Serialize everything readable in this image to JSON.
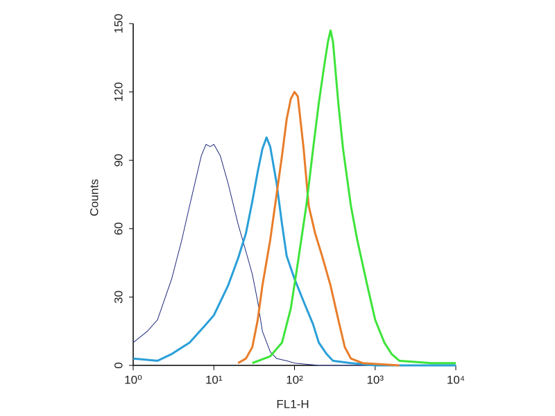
{
  "chart_data": {
    "type": "line",
    "x_label": "FL1-H",
    "y_label": "Counts",
    "xscale": "log",
    "xlim": [
      1,
      10000
    ],
    "ylim": [
      0,
      150
    ],
    "xticks": [
      {
        "value": 1,
        "label": "10⁰"
      },
      {
        "value": 10,
        "label": "10¹"
      },
      {
        "value": 100,
        "label": "10²"
      },
      {
        "value": 1000,
        "label": "10³"
      },
      {
        "value": 10000,
        "label": "10⁴"
      }
    ],
    "yticks": [
      0,
      30,
      60,
      90,
      120,
      150
    ],
    "series": [
      {
        "color": "#1f2a7a",
        "width": 1,
        "x": [
          1,
          1.5,
          2,
          3,
          4,
          5,
          6,
          7,
          8,
          9,
          10,
          12,
          15,
          20,
          25,
          30,
          35,
          40,
          50,
          60,
          80,
          100,
          200,
          1000
        ],
        "values": [
          10,
          15,
          20,
          38,
          55,
          70,
          82,
          92,
          97,
          96,
          97,
          92,
          80,
          62,
          50,
          40,
          28,
          15,
          6,
          3,
          2,
          1,
          0,
          0
        ]
      },
      {
        "color": "#2a9fd8",
        "width": 3,
        "x": [
          1,
          2,
          3,
          5,
          8,
          10,
          15,
          20,
          25,
          30,
          35,
          40,
          45,
          50,
          60,
          70,
          80,
          100,
          130,
          170,
          200,
          250,
          300,
          500,
          1000,
          10000
        ],
        "values": [
          3,
          2,
          5,
          10,
          18,
          22,
          35,
          47,
          58,
          72,
          85,
          95,
          100,
          96,
          80,
          62,
          48,
          38,
          28,
          18,
          10,
          5,
          2,
          1,
          0,
          0
        ]
      },
      {
        "color": "#e87d2a",
        "width": 3,
        "x": [
          20,
          25,
          30,
          35,
          40,
          50,
          60,
          70,
          80,
          90,
          100,
          110,
          130,
          150,
          180,
          220,
          280,
          350,
          420,
          500,
          700,
          2000
        ],
        "values": [
          1,
          3,
          8,
          20,
          35,
          55,
          75,
          92,
          108,
          117,
          120,
          118,
          95,
          70,
          58,
          48,
          35,
          20,
          8,
          3,
          1,
          0
        ]
      },
      {
        "color": "#3de43a",
        "width": 3,
        "x": [
          30,
          50,
          70,
          90,
          110,
          140,
          170,
          200,
          230,
          260,
          280,
          300,
          350,
          400,
          500,
          600,
          800,
          1000,
          1300,
          1600,
          2000,
          5000,
          10000
        ],
        "values": [
          1,
          4,
          10,
          25,
          45,
          70,
          95,
          115,
          130,
          142,
          147,
          142,
          115,
          95,
          70,
          55,
          35,
          20,
          10,
          5,
          2,
          1,
          1
        ]
      }
    ]
  }
}
